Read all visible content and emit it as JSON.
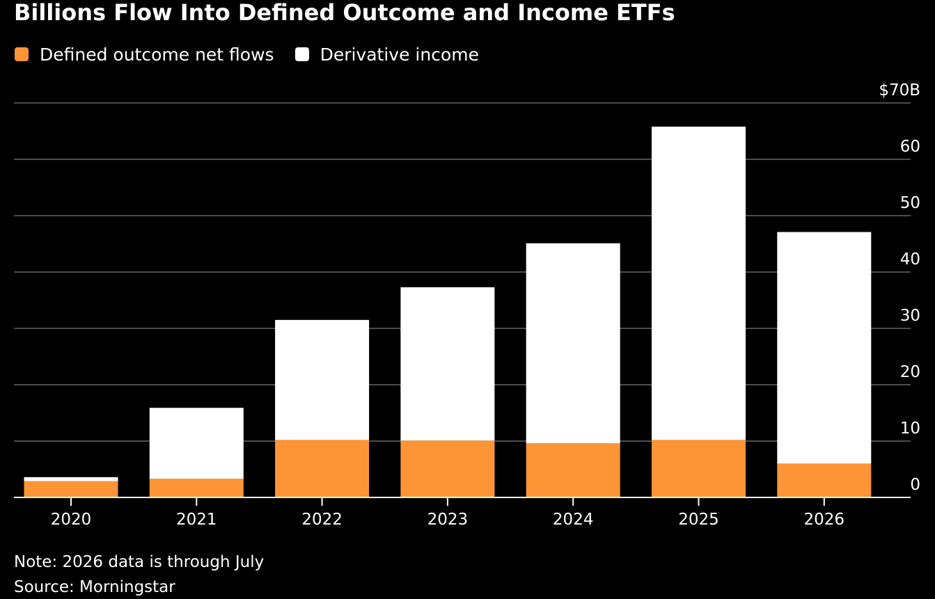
{
  "chart_data": {
    "type": "bar",
    "stacked": true,
    "title": "Billions Flow Into Defined Outcome and Income ETFs",
    "categories": [
      "2020",
      "2021",
      "2022",
      "2023",
      "2024",
      "2025",
      "2026"
    ],
    "series": [
      {
        "name": "Defined outcome net flows",
        "color": "#fd9537",
        "values": [
          2.9,
          3.3,
          10.2,
          10.1,
          9.6,
          10.2,
          6.0
        ]
      },
      {
        "name": "Derivative income",
        "color": "#ffffff",
        "values": [
          0.7,
          12.6,
          21.3,
          27.2,
          35.5,
          55.6,
          41.1
        ]
      }
    ],
    "ylim": [
      0,
      70
    ],
    "yticks": [
      "0",
      "10",
      "20",
      "30",
      "40",
      "50",
      "60",
      "$70B"
    ],
    "ytick_values": [
      0,
      10,
      20,
      30,
      40,
      50,
      60,
      70
    ],
    "y_axis_position": "right",
    "grid": true,
    "legend_position": "top-left",
    "background": "#000000",
    "gridline_color": "#4d4d4d"
  },
  "notes": {
    "note": "Note: 2026 data is through July",
    "source": "Source: Morningstar"
  }
}
